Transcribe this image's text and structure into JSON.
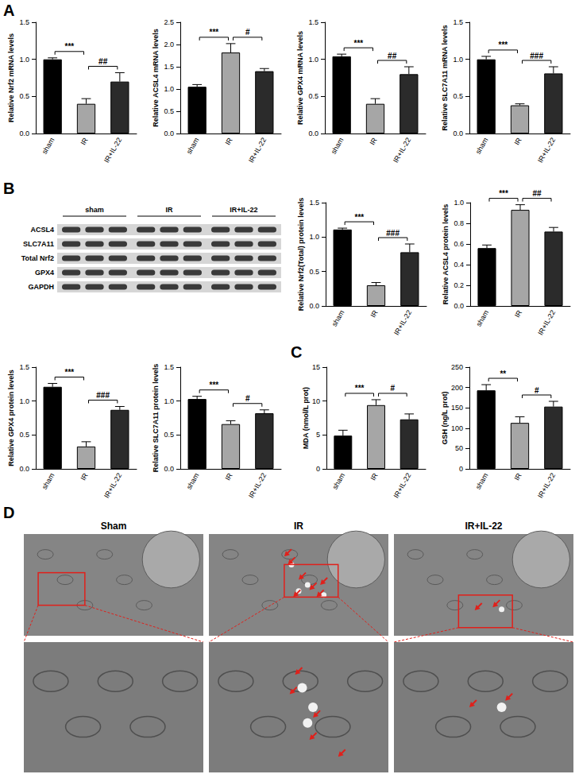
{
  "panel_labels": [
    "A",
    "B",
    "C",
    "D"
  ],
  "chart_data": [
    {
      "type": "bar",
      "y_label": "Relative Nrf2 mRNA levels",
      "categories": [
        "sham",
        "IR",
        "IR+IL-22"
      ],
      "values": [
        1.0,
        0.4,
        0.7
      ],
      "errors": [
        0.02,
        0.07,
        0.12
      ],
      "colors": [
        "#000000",
        "#a6a6a6",
        "#2b2b2b"
      ],
      "ylim": [
        0,
        1.5
      ],
      "yticks": [
        {
          "value": 0,
          "label": "0.0"
        },
        0.5,
        {
          "value": 1,
          "label": "1.0"
        },
        1.5
      ],
      "grid": false,
      "significance": [
        {
          "pair": [
            0,
            1
          ],
          "label": "***"
        },
        {
          "pair": [
            1,
            2
          ],
          "label": "##"
        }
      ]
    },
    {
      "type": "bar",
      "y_label": "Relative ACSL4 mRNA levels",
      "categories": [
        "sham",
        "IR",
        "IR+IL-22"
      ],
      "values": [
        1.05,
        1.82,
        1.4
      ],
      "errors": [
        0.05,
        0.2,
        0.06
      ],
      "colors": [
        "#000000",
        "#a6a6a6",
        "#2b2b2b"
      ],
      "ylim": [
        0,
        2.5
      ],
      "yticks": [
        {
          "value": 0,
          "label": "0.0"
        },
        0.5,
        {
          "value": 1,
          "label": "1.0"
        },
        1.5,
        {
          "value": 2,
          "label": "2.0"
        },
        2.5
      ],
      "grid": false,
      "significance": [
        {
          "pair": [
            0,
            1
          ],
          "label": "***"
        },
        {
          "pair": [
            1,
            2
          ],
          "label": "#"
        }
      ]
    },
    {
      "type": "bar",
      "y_label": "Relative GPX4 mRNA levels",
      "categories": [
        "sham",
        "IR",
        "IR+IL-22"
      ],
      "values": [
        1.04,
        0.4,
        0.8
      ],
      "errors": [
        0.03,
        0.07,
        0.1
      ],
      "colors": [
        "#000000",
        "#a6a6a6",
        "#2b2b2b"
      ],
      "ylim": [
        0,
        1.5
      ],
      "yticks": [
        {
          "value": 0,
          "label": "0.0"
        },
        0.5,
        {
          "value": 1,
          "label": "1.0"
        },
        1.5
      ],
      "grid": false,
      "significance": [
        {
          "pair": [
            0,
            1
          ],
          "label": "***"
        },
        {
          "pair": [
            1,
            2
          ],
          "label": "##"
        }
      ]
    },
    {
      "type": "bar",
      "y_label": "Relative SLC7A11 mRNA levels",
      "categories": [
        "sham",
        "IR",
        "IR+IL-22"
      ],
      "values": [
        1.0,
        0.38,
        0.81
      ],
      "errors": [
        0.04,
        0.02,
        0.09
      ],
      "colors": [
        "#000000",
        "#a6a6a6",
        "#2b2b2b"
      ],
      "ylim": [
        0,
        1.5
      ],
      "yticks": [
        {
          "value": 0,
          "label": "0.0"
        },
        0.5,
        {
          "value": 1,
          "label": "1.0"
        },
        1.5
      ],
      "grid": false,
      "significance": [
        {
          "pair": [
            0,
            1
          ],
          "label": "***"
        },
        {
          "pair": [
            1,
            2
          ],
          "label": "###"
        }
      ]
    },
    {
      "type": "bar",
      "y_label": "Relative Nrf2(Total) protein levels",
      "categories": [
        "sham",
        "IR",
        "IR+IL-22"
      ],
      "values": [
        1.11,
        0.3,
        0.78
      ],
      "errors": [
        0.02,
        0.04,
        0.12
      ],
      "colors": [
        "#000000",
        "#a6a6a6",
        "#2b2b2b"
      ],
      "ylim": [
        0,
        1.5
      ],
      "yticks": [
        {
          "value": 0,
          "label": "0.0"
        },
        0.5,
        {
          "value": 1,
          "label": "1.0"
        },
        1.5
      ],
      "grid": false,
      "significance": [
        {
          "pair": [
            0,
            1
          ],
          "label": "***"
        },
        {
          "pair": [
            1,
            2
          ],
          "label": "###"
        }
      ]
    },
    {
      "type": "bar",
      "y_label": "Relative ACSL4 protein levels",
      "categories": [
        "sham",
        "IR",
        "IR+IL-22"
      ],
      "values": [
        0.56,
        0.93,
        0.72
      ],
      "errors": [
        0.03,
        0.05,
        0.04
      ],
      "colors": [
        "#000000",
        "#a6a6a6",
        "#2b2b2b"
      ],
      "ylim": [
        0,
        1
      ],
      "yticks": [
        {
          "value": 0,
          "label": "0.0"
        },
        0.2,
        0.4,
        0.6,
        0.8,
        {
          "value": 1,
          "label": "1.0"
        }
      ],
      "grid": false,
      "significance": [
        {
          "pair": [
            0,
            1
          ],
          "label": "***"
        },
        {
          "pair": [
            1,
            2
          ],
          "label": "##"
        }
      ]
    },
    {
      "type": "bar",
      "y_label": "Relative GPX4 protein levels",
      "categories": [
        "sham",
        "IR",
        "IR+IL-22"
      ],
      "values": [
        1.21,
        0.33,
        0.87
      ],
      "errors": [
        0.05,
        0.07,
        0.05
      ],
      "colors": [
        "#000000",
        "#a6a6a6",
        "#2b2b2b"
      ],
      "ylim": [
        0,
        1.5
      ],
      "yticks": [
        {
          "value": 0,
          "label": "0.0"
        },
        0.5,
        {
          "value": 1,
          "label": "1.0"
        },
        1.5
      ],
      "grid": false,
      "significance": [
        {
          "pair": [
            0,
            1
          ],
          "label": "***"
        },
        {
          "pair": [
            1,
            2
          ],
          "label": "###"
        }
      ]
    },
    {
      "type": "bar",
      "y_label": "Relative SLC7A11 protein levels",
      "categories": [
        "sham",
        "IR",
        "IR+IL-22"
      ],
      "values": [
        1.03,
        0.66,
        0.82
      ],
      "errors": [
        0.04,
        0.05,
        0.05
      ],
      "colors": [
        "#000000",
        "#a6a6a6",
        "#2b2b2b"
      ],
      "ylim": [
        0,
        1.5
      ],
      "yticks": [
        {
          "value": 0,
          "label": "0.0"
        },
        0.5,
        {
          "value": 1,
          "label": "1.0"
        },
        1.5
      ],
      "grid": false,
      "significance": [
        {
          "pair": [
            0,
            1
          ],
          "label": "***"
        },
        {
          "pair": [
            1,
            2
          ],
          "label": "#"
        }
      ]
    },
    {
      "type": "bar",
      "y_label": "MDA (nmol/L prot)",
      "categories": [
        "sham",
        "IR",
        "IR+IL-22"
      ],
      "values": [
        4.9,
        9.4,
        7.3
      ],
      "errors": [
        0.8,
        0.8,
        0.8
      ],
      "colors": [
        "#000000",
        "#a6a6a6",
        "#2b2b2b"
      ],
      "ylim": [
        0,
        15
      ],
      "yticks": [
        0,
        5,
        10,
        15
      ],
      "grid": false,
      "significance": [
        {
          "pair": [
            0,
            1
          ],
          "label": "***"
        },
        {
          "pair": [
            1,
            2
          ],
          "label": "#"
        }
      ]
    },
    {
      "type": "bar",
      "y_label": "GSH (ng/L prot)",
      "categories": [
        "sham",
        "IR",
        "IR+IL-22"
      ],
      "values": [
        193,
        113,
        153
      ],
      "errors": [
        14,
        15,
        13
      ],
      "colors": [
        "#000000",
        "#a6a6a6",
        "#2b2b2b"
      ],
      "ylim": [
        0,
        250
      ],
      "yticks": [
        0,
        50,
        100,
        150,
        200,
        250
      ],
      "grid": false,
      "significance": [
        {
          "pair": [
            0,
            1
          ],
          "label": "**"
        },
        {
          "pair": [
            1,
            2
          ],
          "label": "#"
        }
      ]
    }
  ],
  "blot": {
    "groups": [
      "sham",
      "IR",
      "IR+IL-22"
    ],
    "rows": [
      "ACSL4",
      "SLC7A11",
      "Total Nrf2",
      "GPX4",
      "GAPDH"
    ]
  },
  "tem": {
    "columns": [
      "Sham",
      "IR",
      "IR+IL-22"
    ]
  }
}
